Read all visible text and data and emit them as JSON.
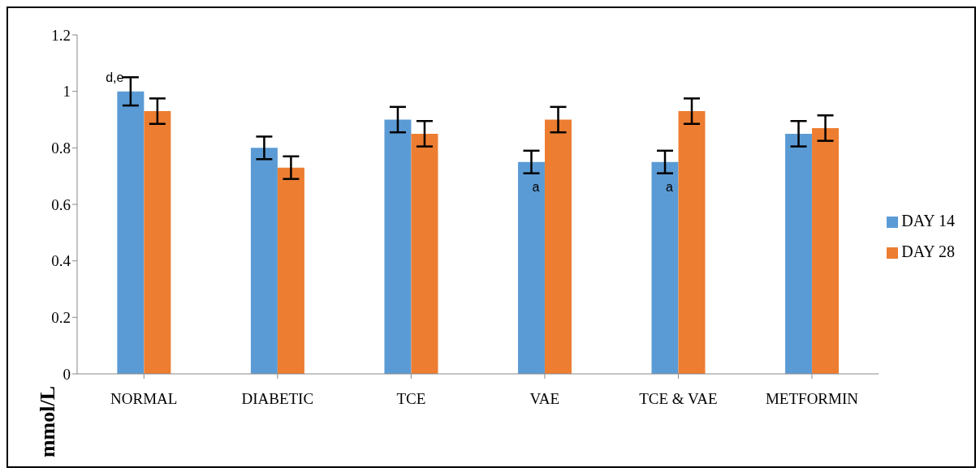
{
  "chart_data": {
    "type": "bar",
    "ylabel": "mmol/L",
    "categories": [
      "NORMAL",
      "DIABETIC",
      "TCE",
      "VAE",
      "TCE & VAE",
      "METFORMIN"
    ],
    "series": [
      {
        "name": "DAY 14",
        "color": "#5b9bd5",
        "values": [
          1.0,
          0.8,
          0.9,
          0.75,
          0.75,
          0.85
        ],
        "errors": [
          0.05,
          0.04,
          0.045,
          0.04,
          0.04,
          0.045
        ]
      },
      {
        "name": "DAY 28",
        "color": "#ed7d31",
        "values": [
          0.93,
          0.73,
          0.85,
          0.9,
          0.93,
          0.87
        ],
        "errors": [
          0.045,
          0.04,
          0.045,
          0.045,
          0.045,
          0.045
        ]
      }
    ],
    "ylim": [
      0,
      1.2
    ],
    "yticks": [
      0,
      0.2,
      0.4,
      0.6,
      0.8,
      1,
      1.2
    ],
    "grid": false,
    "legend": "right",
    "annotations": [
      {
        "text": "d,e",
        "x": "NORMAL",
        "y": 1.0
      },
      {
        "text": "a",
        "x": "VAE",
        "y": 0.75
      },
      {
        "text": "a",
        "x": "TCE & VAE",
        "y": 0.75
      }
    ]
  }
}
